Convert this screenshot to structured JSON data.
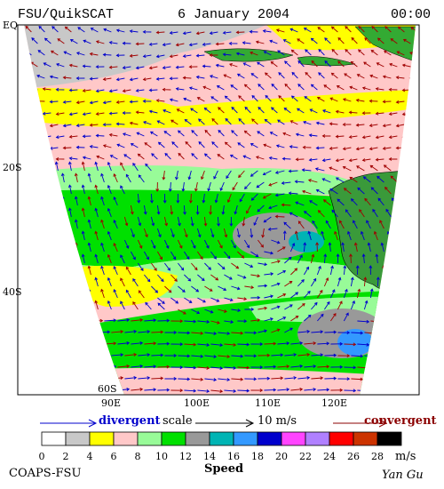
{
  "header": {
    "title": "FSU/QuikSCAT",
    "date": "6 January 2004",
    "time": "00:00"
  },
  "map": {
    "lat_labels": [
      "EQ",
      "20S",
      "40S",
      "60S"
    ],
    "lon_labels": [
      "90E",
      "100E",
      "110E",
      "120E"
    ]
  },
  "legend": {
    "divergent": "divergent",
    "scale": "scale",
    "scale_value": "10 m/s",
    "convergent": "convergent"
  },
  "colorbar": {
    "colors": [
      "#ffffff",
      "#c8c8c8",
      "#ffff00",
      "#ffc8c8",
      "#98fb98",
      "#00e000",
      "#999999",
      "#00b4b4",
      "#3399ff",
      "#0000cc",
      "#ff44ff",
      "#b080ff",
      "#ff0000",
      "#cc3300",
      "#000000"
    ],
    "labels": [
      "0",
      "2",
      "4",
      "6",
      "8",
      "10",
      "12",
      "14",
      "16",
      "18",
      "20",
      "22",
      "24",
      "26",
      "28"
    ],
    "unit": "m/s",
    "title": "Speed"
  },
  "footer": {
    "institution": "COAPS-FSU",
    "author": "Yan Gu"
  }
}
